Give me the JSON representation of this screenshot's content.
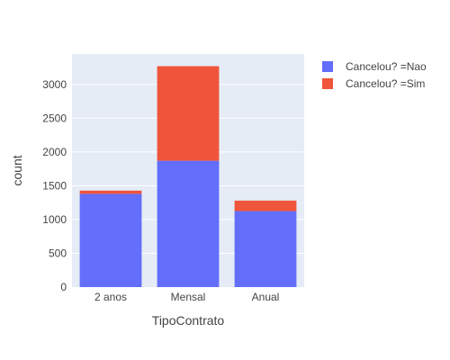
{
  "chart_data": {
    "type": "bar",
    "barmode": "stack",
    "categories": [
      "2 anos",
      "Mensal",
      "Anual"
    ],
    "series": [
      {
        "name": "Cancelou? =Nao",
        "color": "#636efa",
        "values": [
          1380,
          1870,
          1125
        ]
      },
      {
        "name": "Cancelou? =Sim",
        "color": "#ef553b",
        "values": [
          48,
          1400,
          155
        ]
      }
    ],
    "xlabel": "TipoContrato",
    "ylabel": "count",
    "ylim": [
      0,
      3450
    ],
    "yticks": [
      0,
      500,
      1000,
      1500,
      2000,
      2500,
      3000
    ],
    "grid": true,
    "legend_position": "top-right",
    "plot_bgcolor": "#e5ecf6"
  }
}
